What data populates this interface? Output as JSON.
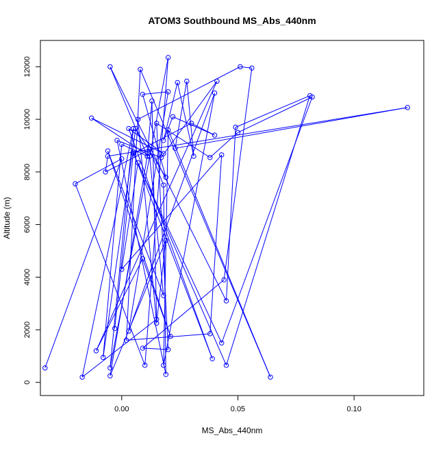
{
  "chart_data": {
    "type": "line",
    "title": "ATOM3 Southbound MS_Abs_440nm",
    "xlabel": "MS_Abs_440nm",
    "ylabel": "Altitude (m)",
    "xlim": [
      -0.035,
      0.13
    ],
    "ylim": [
      -500,
      13000
    ],
    "x_ticks": [
      0.0,
      0.05,
      0.1
    ],
    "x_tick_labels": [
      "0.00",
      "0.05",
      "0.10"
    ],
    "y_ticks": [
      0,
      2000,
      4000,
      6000,
      8000,
      10000,
      12000
    ],
    "y_tick_labels": [
      "0",
      "2000",
      "4000",
      "6000",
      "8000",
      "10000",
      "12000"
    ],
    "grid": false,
    "legend": "none",
    "series_color": "#0000ff",
    "marker": "open-circle",
    "points": [
      {
        "x": -0.033,
        "y": 550
      },
      {
        "x": 0.0,
        "y": 8500
      },
      {
        "x": -0.02,
        "y": 7550
      },
      {
        "x": 0.01,
        "y": 650
      },
      {
        "x": 0.02,
        "y": 12350
      },
      {
        "x": -0.005,
        "y": 550
      },
      {
        "x": 0.005,
        "y": 9650
      },
      {
        "x": -0.017,
        "y": 200
      },
      {
        "x": 0.015,
        "y": 2400
      },
      {
        "x": 0.013,
        "y": 10700
      },
      {
        "x": 0.011,
        "y": 8600
      },
      {
        "x": -0.005,
        "y": 12000
      },
      {
        "x": 0.045,
        "y": 3100
      },
      {
        "x": 0.049,
        "y": 9700
      },
      {
        "x": 0.081,
        "y": 10900
      },
      {
        "x": 0.045,
        "y": 650
      },
      {
        "x": 0.007,
        "y": 8350
      },
      {
        "x": 0.0,
        "y": 4300
      },
      {
        "x": 0.043,
        "y": 8650
      },
      {
        "x": 0.038,
        "y": 1850
      },
      {
        "x": 0.002,
        "y": 1600
      },
      {
        "x": 0.008,
        "y": 11900
      },
      {
        "x": 0.064,
        "y": 200
      },
      {
        "x": 0.02,
        "y": 9600
      },
      {
        "x": 0.018,
        "y": 650
      },
      {
        "x": 0.04,
        "y": 11000
      },
      {
        "x": 0.003,
        "y": 1950
      },
      {
        "x": 0.02,
        "y": 11050
      },
      {
        "x": 0.009,
        "y": 10950
      },
      {
        "x": 0.019,
        "y": 7800
      },
      {
        "x": 0.006,
        "y": 9650
      },
      {
        "x": -0.008,
        "y": 950
      },
      {
        "x": 0.0,
        "y": 9050
      },
      {
        "x": 0.011,
        "y": 8600
      },
      {
        "x": -0.005,
        "y": 250
      },
      {
        "x": 0.019,
        "y": 5400
      },
      {
        "x": 0.015,
        "y": 2250
      },
      {
        "x": 0.007,
        "y": 10000
      },
      {
        "x": 0.051,
        "y": 12000
      },
      {
        "x": 0.056,
        "y": 11950
      },
      {
        "x": 0.044,
        "y": 3900
      },
      {
        "x": 0.009,
        "y": 1300
      },
      {
        "x": 0.02,
        "y": 1250
      },
      {
        "x": 0.015,
        "y": 9850
      },
      {
        "x": 0.038,
        "y": 8550
      },
      {
        "x": 0.05,
        "y": 9500
      },
      {
        "x": 0.082,
        "y": 10850
      },
      {
        "x": 0.043,
        "y": 1500
      },
      {
        "x": 0.005,
        "y": 8700
      },
      {
        "x": 0.03,
        "y": 9850
      },
      {
        "x": 0.04,
        "y": 9400
      },
      {
        "x": 0.022,
        "y": 10100
      },
      {
        "x": 0.018,
        "y": 9200
      },
      {
        "x": 0.024,
        "y": 11400
      },
      {
        "x": 0.031,
        "y": 8600
      },
      {
        "x": 0.028,
        "y": 11450
      },
      {
        "x": 0.023,
        "y": 8900
      },
      {
        "x": 0.123,
        "y": 10450
      },
      {
        "x": -0.006,
        "y": 8600
      },
      {
        "x": -0.007,
        "y": 8000
      },
      {
        "x": 0.012,
        "y": 8850
      },
      {
        "x": 0.018,
        "y": 7500
      },
      {
        "x": 0.019,
        "y": 300
      },
      {
        "x": -0.002,
        "y": 9200
      },
      {
        "x": 0.017,
        "y": 8550
      },
      {
        "x": 0.041,
        "y": 11450
      },
      {
        "x": -0.011,
        "y": 1200
      },
      {
        "x": 0.009,
        "y": 4700
      },
      {
        "x": 0.021,
        "y": 1750
      },
      {
        "x": -0.006,
        "y": 8800
      },
      {
        "x": 0.018,
        "y": 3300
      },
      {
        "x": 0.012,
        "y": 8600
      },
      {
        "x": -0.013,
        "y": 10050
      },
      {
        "x": 0.018,
        "y": 8700
      },
      {
        "x": 0.003,
        "y": 9650
      },
      {
        "x": 0.039,
        "y": 900
      },
      {
        "x": 0.005,
        "y": 8750
      },
      {
        "x": -0.003,
        "y": 2050
      }
    ]
  }
}
